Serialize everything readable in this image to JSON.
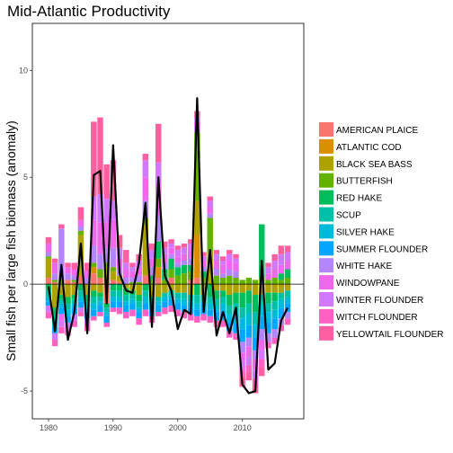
{
  "chart_data": {
    "type": "bar",
    "stacked": true,
    "title": "Mid-Atlantic Productivity",
    "xlabel": "",
    "ylabel": "Small fish per large fish biomass (anomaly)",
    "xlim": [
      1977.5,
      2019.5
    ],
    "ylim": [
      -6.3,
      12.2
    ],
    "x_ticks": [
      1980,
      1990,
      2000,
      2010
    ],
    "y_ticks": [
      -5,
      0,
      5,
      10
    ],
    "x_tick_labels": [
      "1980",
      "1990",
      "2000",
      "2010"
    ],
    "y_tick_labels": [
      "-5",
      "0",
      "5",
      "10"
    ],
    "grid": false,
    "zero_line": true,
    "legend_position": "right",
    "x": [
      1980,
      1981,
      1982,
      1983,
      1984,
      1985,
      1986,
      1987,
      1988,
      1989,
      1990,
      1991,
      1992,
      1993,
      1994,
      1995,
      1996,
      1997,
      1998,
      1999,
      2000,
      2001,
      2002,
      2003,
      2004,
      2005,
      2006,
      2007,
      2008,
      2009,
      2010,
      2011,
      2012,
      2013,
      2014,
      2015,
      2016,
      2017
    ],
    "series": [
      {
        "name": "AMERICAN PLAICE",
        "color": "#F8766D",
        "values": [
          0.3,
          0.1,
          0,
          0.2,
          0.1,
          0.4,
          0,
          0.5,
          0.3,
          -0.9,
          0.2,
          0.1,
          0,
          0,
          0,
          0.4,
          0,
          0.3,
          0,
          0.3,
          0,
          0,
          0.2,
          0.3,
          0,
          0,
          0,
          0,
          0,
          0,
          0,
          0,
          0,
          0,
          0,
          0,
          0,
          0
        ]
      },
      {
        "name": "ATLANTIC COD",
        "color": "#DB8E00",
        "values": [
          0,
          0,
          0,
          0,
          0,
          0,
          0,
          0.3,
          0,
          0,
          0,
          0,
          0,
          0,
          0,
          0,
          0,
          0.5,
          0,
          0,
          0,
          0,
          0,
          2,
          0,
          0,
          0,
          0,
          0,
          0,
          0,
          0,
          0,
          0,
          0,
          0,
          0,
          0
        ]
      },
      {
        "name": "BLACK SEA BASS",
        "color": "#AEA200",
        "values": [
          0.9,
          -1.1,
          -0.5,
          -0.6,
          -0.5,
          1.9,
          -0.5,
          -0.3,
          -0.4,
          0.8,
          0.4,
          0.3,
          -0.2,
          -0.3,
          -0.5,
          2.4,
          -0.6,
          -0.6,
          -0.4,
          -0.3,
          -0.4,
          -0.4,
          -0.5,
          1.6,
          -0.5,
          1.5,
          -0.3,
          -0.3,
          -0.5,
          -0.4,
          -0.4,
          -0.3,
          -0.5,
          -0.5,
          -0.4,
          -0.4,
          -0.4,
          -0.3
        ]
      },
      {
        "name": "BUTTERFISH",
        "color": "#64B200",
        "values": [
          0.1,
          0.1,
          0.2,
          0,
          0.1,
          0.2,
          0,
          0.2,
          0.4,
          0.2,
          0.2,
          0,
          0,
          0.1,
          0.1,
          0.3,
          0.2,
          0.4,
          0.2,
          0.4,
          0.4,
          0.5,
          0.4,
          3.2,
          0.3,
          1.6,
          0.4,
          0.3,
          0.4,
          0.3,
          0.2,
          0.3,
          0.2,
          0.3,
          0.2,
          0.3,
          0.2,
          0.3
        ]
      },
      {
        "name": "RED HAKE",
        "color": "#00BD5C",
        "values": [
          -0.3,
          -0.3,
          -0.2,
          -0.3,
          -0.2,
          -0.3,
          -0.3,
          -0.3,
          -0.2,
          -0.2,
          -0.3,
          -0.3,
          -0.3,
          -0.2,
          -0.3,
          -0.3,
          0.2,
          0.8,
          0.5,
          0.5,
          0.4,
          0.4,
          0.3,
          -0.5,
          0.3,
          -0.6,
          -0.4,
          -0.3,
          -0.5,
          -0.5,
          -0.7,
          -0.6,
          -0.8,
          2.5,
          -0.5,
          -0.4,
          0.3,
          0.4
        ]
      },
      {
        "name": "SCUP",
        "color": "#00C1A7",
        "values": [
          -0.3,
          -0.3,
          -0.2,
          -0.3,
          -0.2,
          -0.3,
          -0.3,
          -0.3,
          -0.2,
          -0.2,
          -0.3,
          -0.3,
          -0.3,
          -0.2,
          -0.3,
          -0.3,
          -0.3,
          -0.2,
          -0.2,
          -0.2,
          -0.3,
          -0.3,
          -0.3,
          -0.4,
          -0.3,
          -0.3,
          -0.3,
          -0.3,
          -0.4,
          -0.4,
          -0.5,
          -0.5,
          -0.6,
          -0.5,
          -0.4,
          -0.4,
          -0.3,
          -0.3
        ]
      },
      {
        "name": "SILVER HAKE",
        "color": "#00BADE",
        "values": [
          -0.2,
          -0.3,
          -0.2,
          -0.3,
          -0.2,
          -0.2,
          -0.2,
          -0.3,
          -0.2,
          -0.2,
          -0.2,
          -0.2,
          -0.2,
          -0.2,
          -0.2,
          -0.3,
          -0.3,
          -0.2,
          -0.2,
          -0.2,
          -0.2,
          -0.3,
          -0.3,
          -0.3,
          -0.3,
          -0.3,
          -0.3,
          -0.4,
          -0.4,
          -0.5,
          -0.5,
          -0.5,
          -0.6,
          -0.5,
          -0.5,
          -0.4,
          -0.4,
          -0.3
        ]
      },
      {
        "name": "SUMMER FLOUNDER",
        "color": "#00A6FF",
        "values": [
          -0.2,
          -0.3,
          -0.3,
          -0.3,
          -0.3,
          -0.3,
          -0.3,
          -0.3,
          -0.3,
          -0.3,
          -0.3,
          -0.3,
          -0.3,
          -0.3,
          -0.3,
          -0.3,
          -0.3,
          -0.3,
          -0.3,
          -0.3,
          -0.3,
          -0.3,
          -0.3,
          -0.3,
          -0.3,
          -0.3,
          -0.4,
          -0.4,
          -0.4,
          -0.5,
          -0.6,
          -0.6,
          -0.6,
          -0.6,
          -0.5,
          -0.5,
          -0.5,
          -0.4
        ]
      },
      {
        "name": "WHITE HAKE",
        "color": "#B385FF",
        "values": [
          0.2,
          0.3,
          2.4,
          0.3,
          0.2,
          0.2,
          0.3,
          0.8,
          0.7,
          0.7,
          0.9,
          0.3,
          0.3,
          0.2,
          0.3,
          0.8,
          0.4,
          1.2,
          0.3,
          0.2,
          0.2,
          0.2,
          0.3,
          0.2,
          0.2,
          0.2,
          0.3,
          0.2,
          0.3,
          0.3,
          -0.5,
          -0.4,
          -0.4,
          -0.5,
          -0.4,
          -0.4,
          -0.3,
          -0.3
        ]
      },
      {
        "name": "WINDOWPANE",
        "color": "#EF67EB",
        "values": [
          0.4,
          0.5,
          -0.3,
          0.3,
          0.3,
          0.3,
          0.3,
          1.2,
          1.5,
          1.2,
          1.3,
          0.5,
          0.4,
          0.3,
          0.4,
          1.1,
          0.4,
          1.5,
          0.4,
          0.3,
          0.3,
          0.3,
          0.4,
          0.3,
          0.3,
          0.3,
          0.4,
          0.4,
          0.4,
          0.4,
          -0.4,
          -0.5,
          -0.5,
          -0.5,
          0.3,
          0.4,
          0.4,
          0.4
        ]
      },
      {
        "name": "WINTER FLOUNDER",
        "color": "#D277FF",
        "values": [
          -0.3,
          -0.3,
          -0.3,
          -0.3,
          -0.3,
          -0.2,
          -0.3,
          1.1,
          1.3,
          1.1,
          0.9,
          0.5,
          0.3,
          0.2,
          0.3,
          0.8,
          0.4,
          1.0,
          0.3,
          0.2,
          0.3,
          0.3,
          0.3,
          0.2,
          0.2,
          0.3,
          0.3,
          0.2,
          0.3,
          0.2,
          -0.4,
          -0.4,
          -0.4,
          -0.4,
          0.3,
          0.4,
          0.5,
          0.4
        ]
      },
      {
        "name": "WITCH FLOUNDER",
        "color": "#FF61C3",
        "values": [
          -0.3,
          -0.3,
          -0.3,
          -0.3,
          -0.3,
          -0.2,
          -0.3,
          -0.2,
          -0.2,
          -0.2,
          -0.2,
          -0.3,
          -0.3,
          -0.3,
          -0.3,
          -0.3,
          -0.3,
          -0.2,
          -0.3,
          -0.3,
          -0.3,
          -0.3,
          -0.3,
          -0.3,
          -0.3,
          -0.3,
          -0.3,
          -0.3,
          -0.3,
          -0.3,
          -0.3,
          -0.3,
          -0.3,
          -0.4,
          -0.3,
          -0.3,
          -0.3,
          -0.3
        ]
      },
      {
        "name": "YELLOWTAIL FLOUNDER",
        "color": "#FF5FA0",
        "values": [
          0.3,
          0.2,
          0.2,
          0.2,
          0.3,
          0.6,
          0.4,
          3.5,
          3.6,
          1.6,
          1.9,
          0.6,
          0.6,
          0.2,
          0.3,
          0.3,
          0.3,
          1.8,
          0.3,
          0.2,
          0.2,
          0.2,
          0.2,
          0.3,
          0.2,
          0.2,
          0.2,
          0.2,
          0.2,
          0.2,
          -0.5,
          -0.4,
          -0.4,
          -0.4,
          0.2,
          0.3,
          0.4,
          0.3
        ]
      }
    ],
    "total_line": {
      "color": "#000000",
      "values": [
        -0.1,
        -2.2,
        0.9,
        -2.6,
        -1.3,
        1.9,
        -2.3,
        5.1,
        5.3,
        -0.9,
        6.5,
        0.5,
        -0.3,
        -0.4,
        1.0,
        3.8,
        -2.0,
        5.0,
        0.4,
        -0.3,
        -2.1,
        -1.2,
        -1.4,
        8.7,
        -1.3,
        1.6,
        -2.4,
        -1.3,
        -2.3,
        -1.1,
        -4.7,
        -5.1,
        -5.0,
        1.1,
        -4.0,
        -3.7,
        -1.7,
        -1.1
      ]
    }
  }
}
